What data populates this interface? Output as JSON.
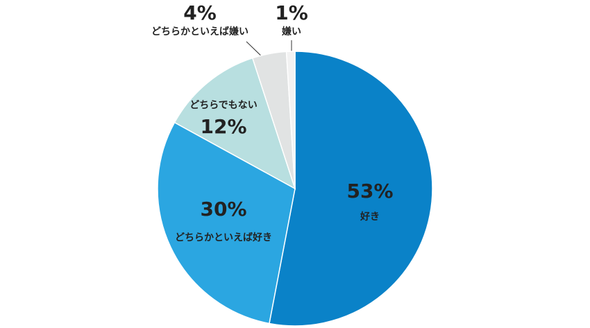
{
  "chart_data": {
    "type": "pie",
    "categories": [
      "好き",
      "どちらかといえば好き",
      "どちらでもない",
      "どちらかといえば嫌い",
      "嫌い"
    ],
    "values": [
      53,
      30,
      12,
      4,
      1
    ],
    "value_labels": [
      "53%",
      "30%",
      "12%",
      "4%",
      "1%"
    ],
    "colors": [
      "#0a82c8",
      "#2ba6e1",
      "#b8dfe0",
      "#e1e3e3",
      "#f2f2f2"
    ]
  }
}
